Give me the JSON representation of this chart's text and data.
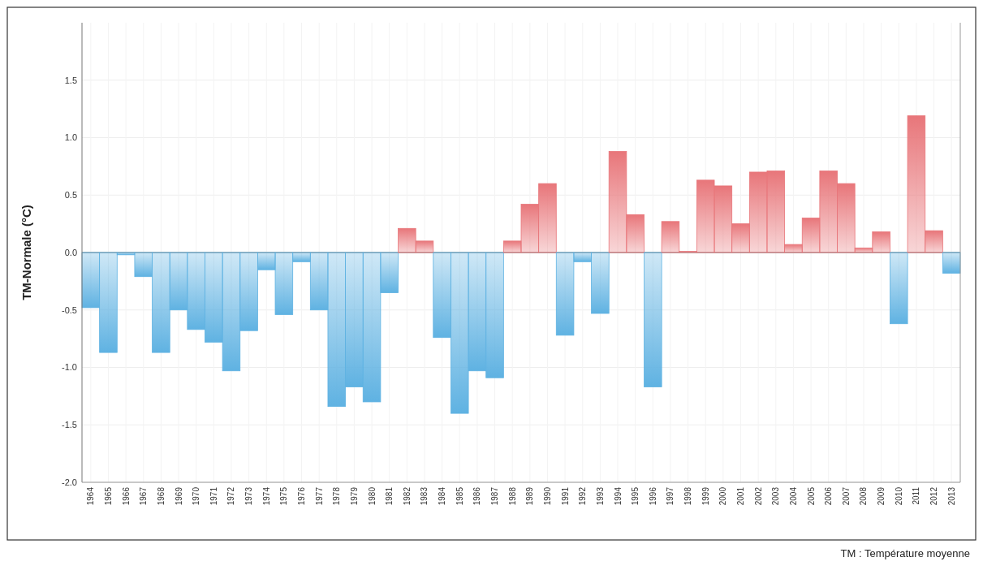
{
  "chart_data": {
    "type": "bar",
    "ylabel": "TM-Normale (°C)",
    "categories": [
      "1964",
      "1965",
      "1966",
      "1967",
      "1968",
      "1969",
      "1970",
      "1971",
      "1972",
      "1973",
      "1974",
      "1975",
      "1976",
      "1977",
      "1978",
      "1979",
      "1980",
      "1981",
      "1982",
      "1983",
      "1984",
      "1985",
      "1986",
      "1987",
      "1988",
      "1989",
      "1990",
      "1991",
      "1992",
      "1993",
      "1994",
      "1995",
      "1996",
      "1997",
      "1998",
      "1999",
      "2000",
      "2001",
      "2002",
      "2003",
      "2004",
      "2005",
      "2006",
      "2007",
      "2008",
      "2009",
      "2010",
      "2011",
      "2012",
      "2013"
    ],
    "values": [
      -0.48,
      -0.87,
      -0.02,
      -0.21,
      -0.87,
      -0.5,
      -0.67,
      -0.78,
      -1.03,
      -0.68,
      -0.15,
      -0.54,
      -0.08,
      -0.5,
      -1.34,
      -1.17,
      -1.3,
      -0.35,
      0.21,
      0.1,
      -0.74,
      -1.4,
      -1.03,
      -1.09,
      0.1,
      0.42,
      0.6,
      -0.72,
      -0.08,
      -0.53,
      0.88,
      0.33,
      -1.17,
      0.27,
      0.01,
      0.63,
      0.58,
      0.25,
      0.7,
      0.71,
      0.07,
      0.3,
      0.71,
      0.6,
      0.04,
      0.18,
      -0.62,
      1.19,
      0.19,
      -0.18
    ],
    "colors": [
      "#5fb2e2",
      "#5fb2e2",
      "#5fb2e2",
      "#5fb2e2",
      "#5fb2e2",
      "#5fb2e2",
      "#5fb2e2",
      "#5fb2e2",
      "#5fb2e2",
      "#5fb2e2",
      "#5fb2e2",
      "#5fb2e2",
      "#5fb2e2",
      "#5fb2e2",
      "#5fb2e2",
      "#5fb2e2",
      "#5fb2e2",
      "#5fb2e2",
      "#e8767a",
      "#e8767a",
      "#5fb2e2",
      "#5fb2e2",
      "#5fb2e2",
      "#5fb2e2",
      "#e8767a",
      "#e8767a",
      "#e8767a",
      "#5fb2e2",
      "#5fb2e2",
      "#5fb2e2",
      "#e8767a",
      "#e8767a",
      "#5fb2e2",
      "#e8767a",
      "#e8767a",
      "#e8767a",
      "#e8767a",
      "#e8767a",
      "#e8767a",
      "#e8767a",
      "#e8767a",
      "#e8767a",
      "#e8767a",
      "#e8767a",
      "#e8767a",
      "#e8767a",
      "#5fb2e2",
      "#e8767a",
      "#e8767a",
      "#5fb2e2"
    ],
    "ylim": [
      -2,
      2
    ],
    "yticks": [
      {
        "value": -2,
        "label": "-2.0"
      },
      {
        "value": -1.5,
        "label": "-1.5"
      },
      {
        "value": -1,
        "label": "-1.0"
      },
      {
        "value": -0.5,
        "label": "-0.5"
      },
      {
        "value": 0,
        "label": "0.0"
      },
      {
        "value": 0.5,
        "label": "0.5"
      },
      {
        "value": 1,
        "label": "1.0"
      },
      {
        "value": 1.5,
        "label": "1.5"
      }
    ],
    "grid": true,
    "annotations": [
      "TM : Température moyenne"
    ]
  }
}
